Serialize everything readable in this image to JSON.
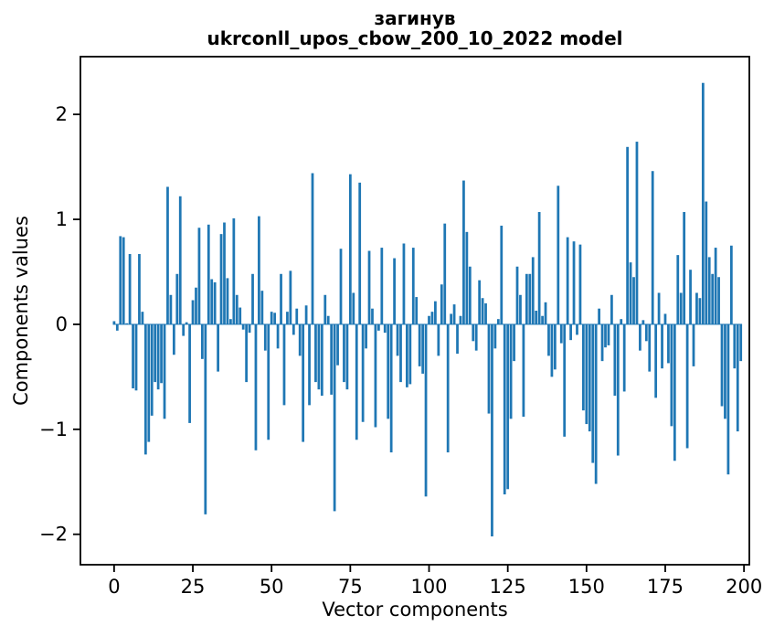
{
  "chart_data": {
    "type": "bar",
    "title_line1": "загинув",
    "title_line2": "ukrconll_upos_cbow_200_10_2022 model",
    "xlabel": "Vector components",
    "ylabel": "Components values",
    "bar_color": "#1f77b4",
    "background_color": "#ffffff",
    "grid": false,
    "legend_position": "none",
    "xlim": [
      -10.7,
      201.7
    ],
    "ylim": [
      -2.29,
      2.55
    ],
    "x_ticks": [
      0,
      25,
      50,
      75,
      100,
      125,
      150,
      175,
      200
    ],
    "x_tick_labels": [
      "0",
      "25",
      "50",
      "75",
      "100",
      "125",
      "150",
      "175",
      "200"
    ],
    "y_ticks": [
      -2,
      -1,
      0,
      1,
      2
    ],
    "y_tick_labels": [
      "−2",
      "−1",
      "0",
      "1",
      "2"
    ],
    "x_start": 0,
    "bar_data_width": 0.8,
    "values": [
      0.03,
      -0.06,
      0.84,
      0.83,
      0.01,
      0.67,
      -0.61,
      -0.63,
      0.67,
      0.12,
      -1.24,
      -1.12,
      -0.87,
      -0.55,
      -0.62,
      -0.56,
      -0.9,
      1.31,
      0.28,
      -0.29,
      0.48,
      1.22,
      -0.11,
      0.02,
      -0.94,
      0.23,
      0.35,
      0.92,
      -0.33,
      -1.81,
      0.95,
      0.43,
      0.4,
      -0.45,
      0.86,
      0.97,
      0.44,
      0.05,
      1.01,
      0.28,
      0.16,
      -0.05,
      -0.55,
      -0.08,
      0.48,
      -1.2,
      1.03,
      0.32,
      -0.25,
      -1.1,
      0.12,
      0.11,
      -0.23,
      0.48,
      -0.77,
      0.12,
      0.51,
      -0.1,
      0.15,
      -0.3,
      -1.12,
      0.18,
      -0.77,
      1.44,
      -0.55,
      -0.62,
      -0.68,
      0.28,
      0.08,
      -0.67,
      -1.78,
      -0.39,
      0.72,
      -0.55,
      -0.62,
      1.43,
      0.3,
      -1.1,
      1.35,
      -0.93,
      -0.23,
      0.7,
      0.15,
      -0.98,
      -0.06,
      0.73,
      -0.08,
      -0.9,
      -1.22,
      0.63,
      -0.3,
      -0.55,
      0.77,
      -0.6,
      -0.57,
      0.73,
      0.26,
      -0.4,
      -0.47,
      -1.64,
      0.08,
      0.12,
      0.22,
      -0.3,
      0.38,
      0.96,
      -1.22,
      0.1,
      0.19,
      -0.28,
      0.08,
      1.37,
      0.88,
      0.55,
      -0.16,
      -0.25,
      0.42,
      0.25,
      0.2,
      -0.85,
      -2.02,
      -0.23,
      0.05,
      0.94,
      -1.62,
      -1.57,
      -0.9,
      -0.35,
      0.55,
      0.28,
      -0.88,
      0.48,
      0.48,
      0.64,
      0.13,
      1.07,
      0.08,
      0.21,
      -0.3,
      -0.5,
      -0.43,
      1.32,
      -0.18,
      -1.07,
      0.83,
      -0.15,
      0.79,
      -0.1,
      0.76,
      -0.82,
      -0.95,
      -1.02,
      -1.32,
      -1.52,
      0.15,
      -0.35,
      -0.22,
      -0.2,
      0.28,
      -0.68,
      -1.25,
      0.05,
      -0.64,
      1.69,
      0.59,
      0.45,
      1.74,
      -0.25,
      0.04,
      -0.16,
      -0.45,
      1.46,
      -0.7,
      0.3,
      -0.42,
      0.1,
      -0.37,
      -0.97,
      -1.3,
      0.66,
      0.3,
      1.07,
      -1.18,
      0.52,
      -0.4,
      0.3,
      0.25,
      2.3,
      1.17,
      0.64,
      0.48,
      0.73,
      0.45,
      -0.78,
      -0.9,
      -1.43,
      0.75,
      -0.42,
      -1.02,
      -0.35
    ]
  }
}
